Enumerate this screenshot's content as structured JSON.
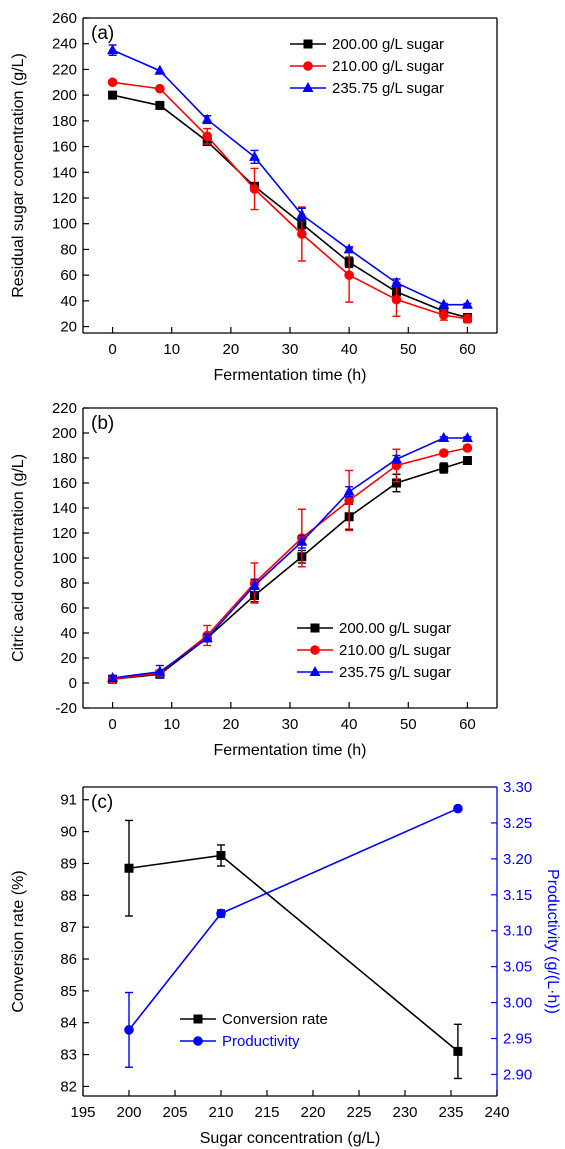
{
  "chart_data": [
    {
      "type": "line",
      "panel_label": "(a)",
      "xlabel": "Fermentation time (h)",
      "ylabel": "Residual sugar concentration (g/L)",
      "xlim": [
        -5,
        65
      ],
      "ylim": [
        15,
        260
      ],
      "xticks": [
        0,
        10,
        20,
        30,
        40,
        50,
        60
      ],
      "yticks": [
        20,
        40,
        60,
        80,
        100,
        120,
        140,
        160,
        180,
        200,
        220,
        240,
        260
      ],
      "x": [
        0,
        8,
        16,
        24,
        32,
        40,
        48,
        56,
        60
      ],
      "legend_position": "top-right",
      "series": [
        {
          "name": "200.00 g/L sugar",
          "color": "#000000",
          "marker": "square",
          "values": [
            200,
            192,
            164,
            129,
            100,
            70,
            47,
            32,
            27
          ],
          "errors": [
            0,
            0,
            3,
            3,
            4,
            4,
            4,
            3,
            2
          ]
        },
        {
          "name": "210.00 g/L sugar",
          "color": "#ff0000",
          "marker": "circle",
          "values": [
            210,
            205,
            168,
            127,
            92,
            60,
            41,
            29,
            26
          ],
          "errors": [
            0,
            0,
            6,
            16,
            21,
            21,
            13,
            4,
            3
          ]
        },
        {
          "name": "235.75 g/L sugar",
          "color": "#0000ff",
          "marker": "triangle",
          "values": [
            235,
            219,
            181,
            152,
            107,
            80,
            54,
            37,
            37
          ],
          "errors": [
            4,
            0,
            3,
            5,
            5,
            2,
            3,
            1,
            1
          ]
        }
      ]
    },
    {
      "type": "line",
      "panel_label": "(b)",
      "xlabel": "Fermentation time (h)",
      "ylabel": "Citric acid concentration (g/L)",
      "xlim": [
        -5,
        65
      ],
      "ylim": [
        -20,
        220
      ],
      "xticks": [
        0,
        10,
        20,
        30,
        40,
        50,
        60
      ],
      "yticks": [
        -20,
        0,
        20,
        40,
        60,
        80,
        100,
        120,
        140,
        160,
        180,
        200,
        220
      ],
      "x": [
        0,
        8,
        16,
        24,
        32,
        40,
        48,
        56,
        60
      ],
      "legend_position": "lower-right",
      "series": [
        {
          "name": "200.00 g/L sugar",
          "color": "#000000",
          "marker": "square",
          "values": [
            3,
            7,
            36,
            70,
            101,
            133,
            160,
            172,
            178
          ],
          "errors": [
            1,
            2,
            3,
            5,
            5,
            10,
            7,
            4,
            2
          ]
        },
        {
          "name": "210.00 g/L sugar",
          "color": "#ff0000",
          "marker": "circle",
          "values": [
            3,
            8,
            38,
            80,
            116,
            146,
            174,
            184,
            188
          ],
          "errors": [
            1,
            2,
            8,
            16,
            23,
            24,
            13,
            2,
            2
          ]
        },
        {
          "name": "235.75 g/L sugar",
          "color": "#0000ff",
          "marker": "triangle",
          "values": [
            4,
            9,
            36,
            78,
            113,
            153,
            179,
            196,
            196
          ],
          "errors": [
            2,
            5,
            3,
            5,
            5,
            4,
            3,
            1,
            1
          ]
        }
      ]
    },
    {
      "type": "line",
      "panel_label": "(c)",
      "xlabel": "Sugar concentration (g/L)",
      "ylabel": "Conversion rate (%)",
      "y2label": "Productivity (g/(L·h))",
      "xlim": [
        195,
        240
      ],
      "ylim": [
        81.7,
        91.4
      ],
      "y2lim": [
        2.87,
        3.3
      ],
      "xticks": [
        195,
        200,
        205,
        210,
        215,
        220,
        225,
        230,
        235,
        240
      ],
      "yticks": [
        82,
        83,
        84,
        85,
        86,
        87,
        88,
        89,
        90,
        91
      ],
      "y2ticks": [
        "2.90",
        "2.95",
        "3.00",
        "3.05",
        "3.10",
        "3.15",
        "3.20",
        "3.25",
        "3.30"
      ],
      "x": [
        200,
        210,
        235.75
      ],
      "legend_position": "lower-left",
      "series": [
        {
          "name": "Conversion rate",
          "color": "#000000",
          "marker": "square",
          "axis": "left",
          "values": [
            88.85,
            89.25,
            83.1
          ],
          "errors": [
            1.5,
            0.33,
            0.85
          ]
        },
        {
          "name": "Productivity",
          "color": "#0000ff",
          "marker": "circle",
          "axis": "right",
          "values": [
            2.962,
            3.124,
            3.27
          ],
          "errors": [
            0.052,
            0.005,
            0
          ]
        }
      ]
    }
  ]
}
